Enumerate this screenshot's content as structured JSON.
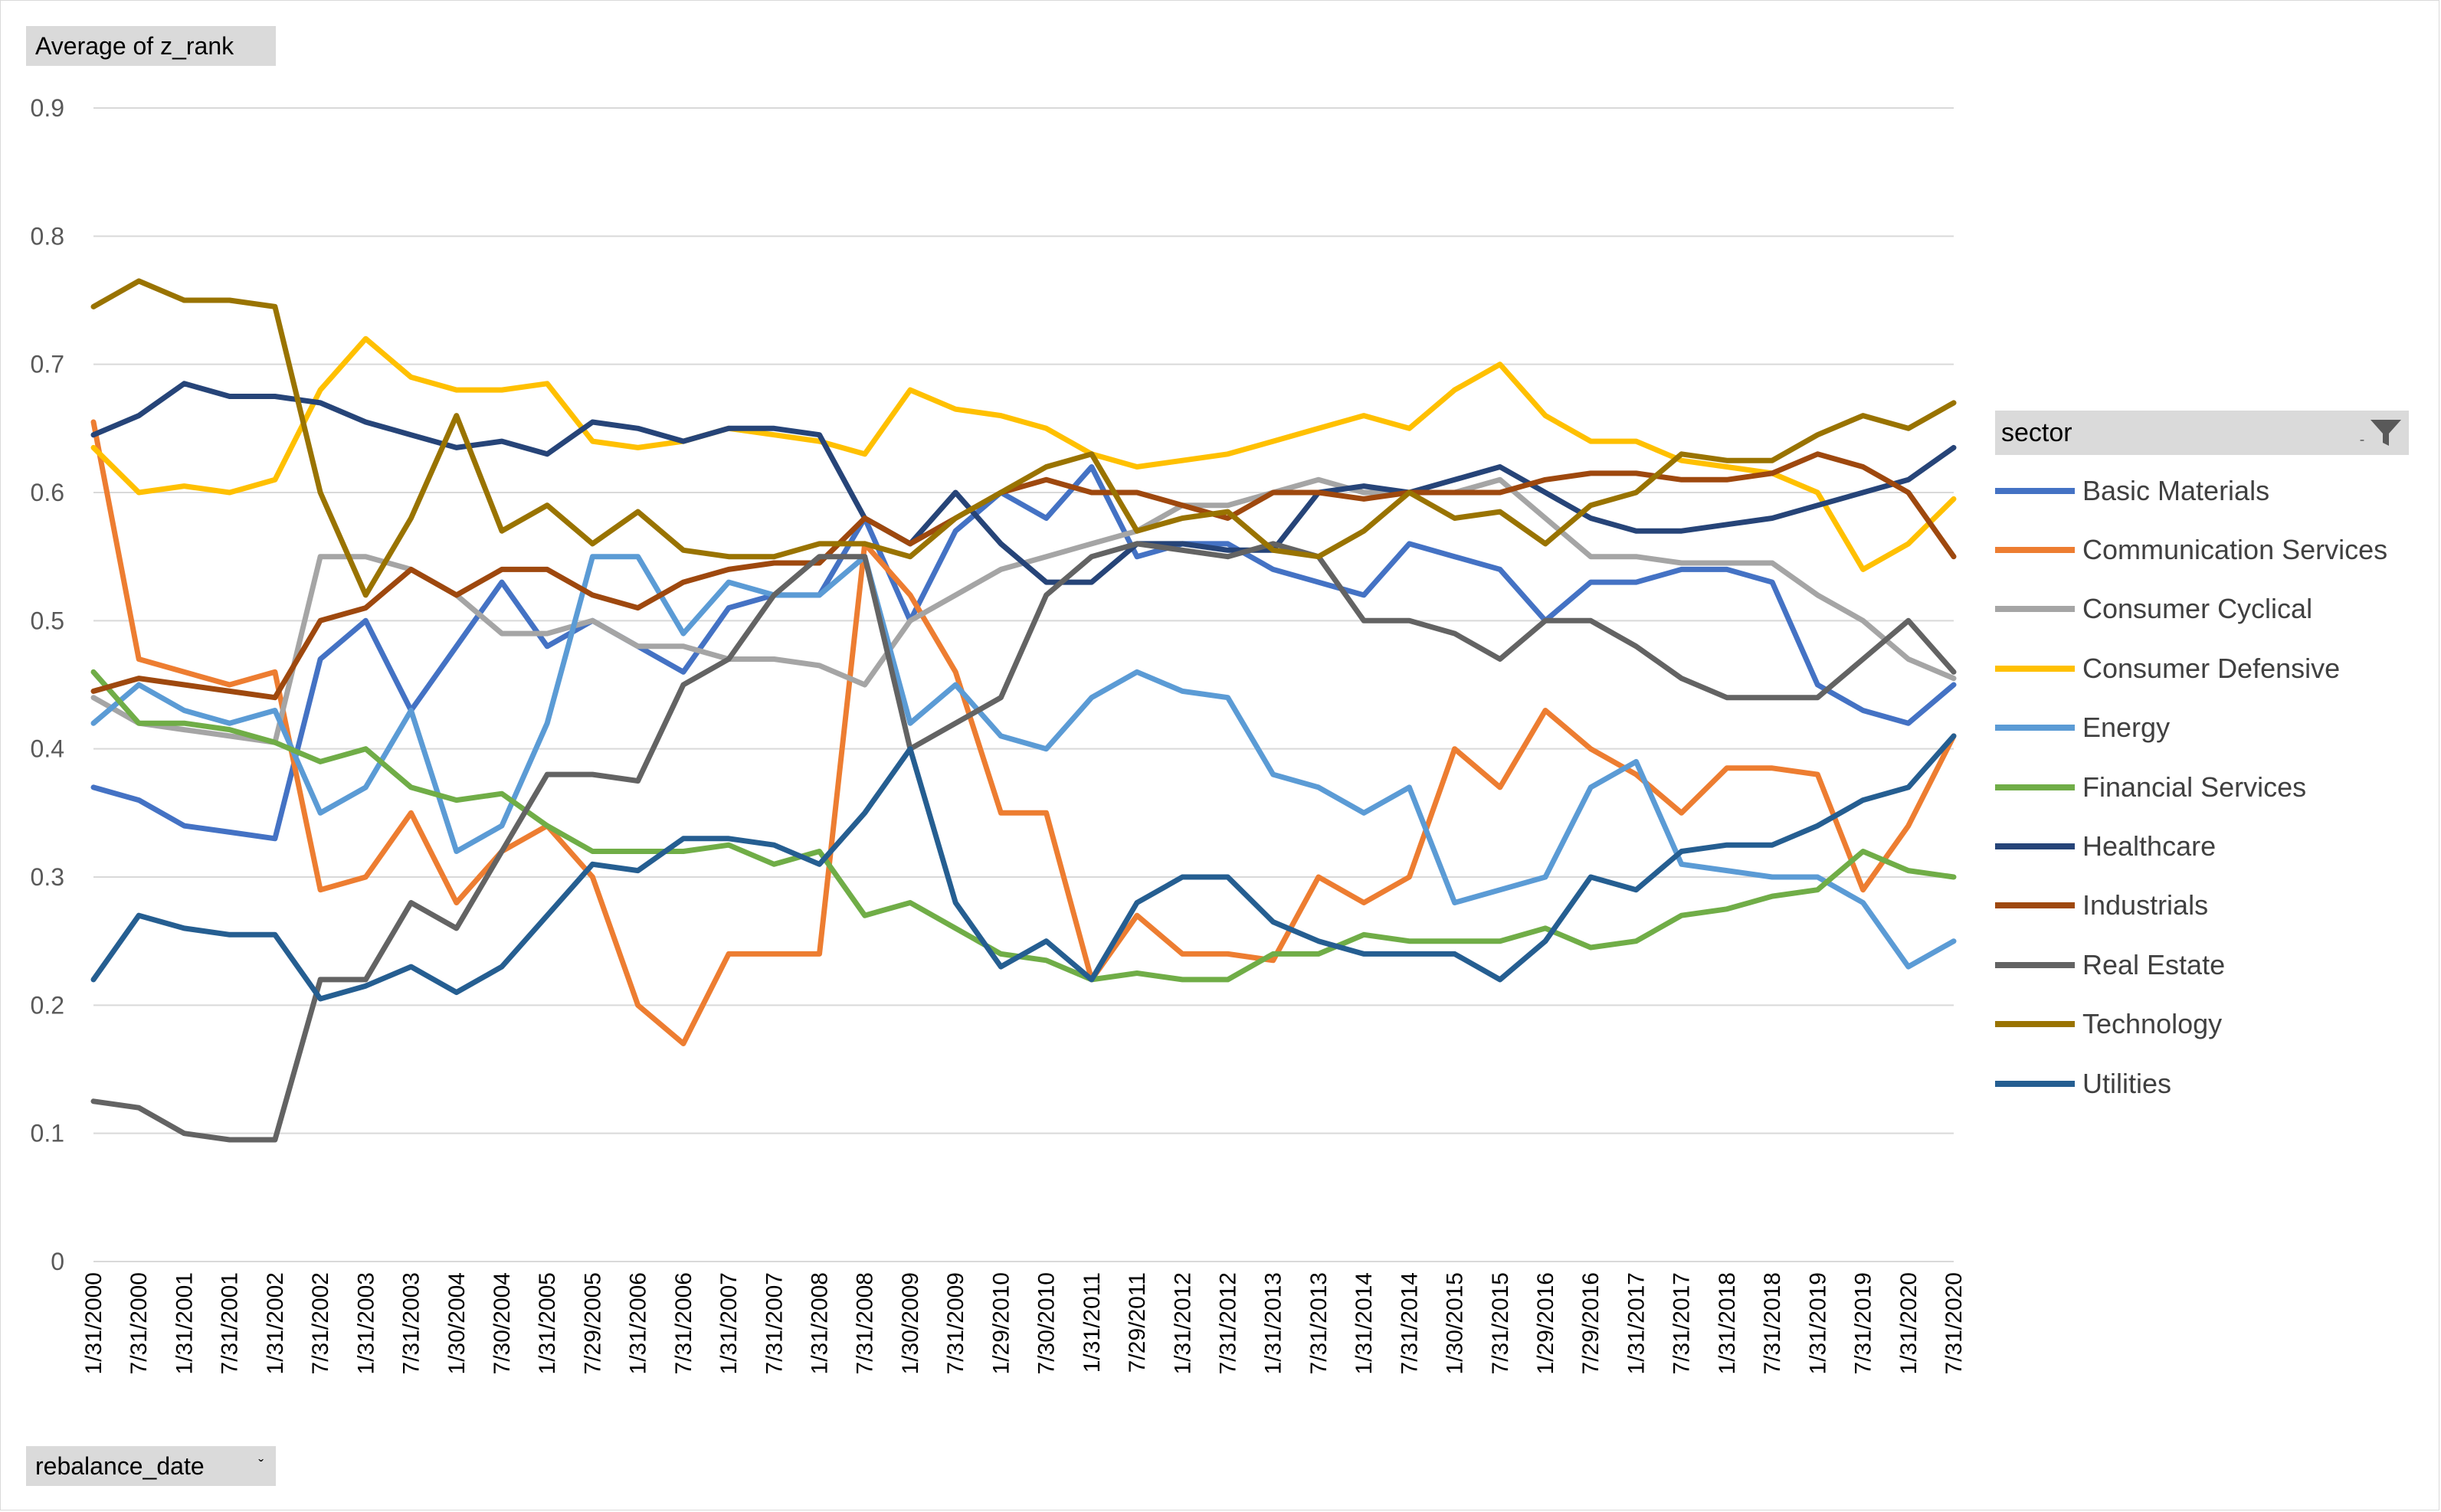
{
  "value_field": {
    "label": "Average  of z_rank"
  },
  "axis_field": {
    "label": "rebalance_date",
    "dropdown_glyph": "ˇ"
  },
  "legend": {
    "title": "sector",
    "dropdown_glyph": "ˍ",
    "filter_icon": "filter-icon"
  },
  "chart_data": {
    "type": "line",
    "title": "",
    "xlabel": "",
    "ylabel": "",
    "ylim": [
      0,
      0.9
    ],
    "y_ticks": [
      "0",
      "0.1",
      "0.2",
      "0.3",
      "0.4",
      "0.5",
      "0.6",
      "0.7",
      "0.8",
      "0.9"
    ],
    "grid": true,
    "legend_position": "right",
    "categories": [
      "1/31/2000",
      "7/31/2000",
      "1/31/2001",
      "7/31/2001",
      "1/31/2002",
      "7/31/2002",
      "1/31/2003",
      "7/31/2003",
      "1/30/2004",
      "7/30/2004",
      "1/31/2005",
      "7/29/2005",
      "1/31/2006",
      "7/31/2006",
      "1/31/2007",
      "7/31/2007",
      "1/31/2008",
      "7/31/2008",
      "1/30/2009",
      "7/31/2009",
      "1/29/2010",
      "7/30/2010",
      "1/31/2011",
      "7/29/2011",
      "1/31/2012",
      "7/31/2012",
      "1/31/2013",
      "7/31/2013",
      "1/31/2014",
      "7/31/2014",
      "1/30/2015",
      "7/31/2015",
      "1/29/2016",
      "7/29/2016",
      "1/31/2017",
      "7/31/2017",
      "1/31/2018",
      "7/31/2018",
      "1/31/2019",
      "7/31/2019",
      "1/31/2020",
      "7/31/2020"
    ],
    "series": [
      {
        "name": "Basic Materials",
        "color": "#4472c4",
        "values": [
          0.37,
          0.36,
          0.34,
          0.335,
          0.33,
          0.47,
          0.5,
          0.43,
          0.48,
          0.53,
          0.48,
          0.5,
          0.48,
          0.46,
          0.51,
          0.52,
          0.52,
          0.58,
          0.5,
          0.57,
          0.6,
          0.58,
          0.62,
          0.55,
          0.56,
          0.56,
          0.54,
          0.53,
          0.52,
          0.56,
          0.55,
          0.54,
          0.5,
          0.53,
          0.53,
          0.54,
          0.54,
          0.53,
          0.45,
          0.43,
          0.42,
          0.45
        ]
      },
      {
        "name": "Communication Services",
        "color": "#ed7d31",
        "values": [
          0.655,
          0.47,
          0.46,
          0.45,
          0.46,
          0.29,
          0.3,
          0.35,
          0.28,
          0.32,
          0.34,
          0.3,
          0.2,
          0.17,
          0.24,
          0.24,
          0.24,
          0.56,
          0.52,
          0.46,
          0.35,
          0.35,
          0.22,
          0.27,
          0.24,
          0.24,
          0.235,
          0.3,
          0.28,
          0.3,
          0.4,
          0.37,
          0.43,
          0.4,
          0.38,
          0.35,
          0.385,
          0.385,
          0.38,
          0.29,
          0.34,
          0.41
        ]
      },
      {
        "name": "Consumer Cyclical",
        "color": "#a5a5a5",
        "values": [
          0.44,
          0.42,
          0.415,
          0.41,
          0.405,
          0.55,
          0.55,
          0.54,
          0.52,
          0.49,
          0.49,
          0.5,
          0.48,
          0.48,
          0.47,
          0.47,
          0.465,
          0.45,
          0.5,
          0.52,
          0.54,
          0.55,
          0.56,
          0.57,
          0.59,
          0.59,
          0.6,
          0.61,
          0.6,
          0.6,
          0.6,
          0.61,
          0.58,
          0.55,
          0.55,
          0.545,
          0.545,
          0.545,
          0.52,
          0.5,
          0.47,
          0.455
        ]
      },
      {
        "name": "Consumer Defensive",
        "color": "#ffc000",
        "values": [
          0.635,
          0.6,
          0.605,
          0.6,
          0.61,
          0.68,
          0.72,
          0.69,
          0.68,
          0.68,
          0.685,
          0.64,
          0.635,
          0.64,
          0.65,
          0.645,
          0.64,
          0.63,
          0.68,
          0.665,
          0.66,
          0.65,
          0.63,
          0.62,
          0.625,
          0.63,
          0.64,
          0.65,
          0.66,
          0.65,
          0.68,
          0.7,
          0.66,
          0.64,
          0.64,
          0.625,
          0.62,
          0.615,
          0.6,
          0.54,
          0.56,
          0.595
        ]
      },
      {
        "name": "Energy",
        "color": "#5b9bd5",
        "values": [
          0.42,
          0.45,
          0.43,
          0.42,
          0.43,
          0.35,
          0.37,
          0.43,
          0.32,
          0.34,
          0.42,
          0.55,
          0.55,
          0.49,
          0.53,
          0.52,
          0.52,
          0.55,
          0.42,
          0.45,
          0.41,
          0.4,
          0.44,
          0.46,
          0.445,
          0.44,
          0.38,
          0.37,
          0.35,
          0.37,
          0.28,
          0.29,
          0.3,
          0.37,
          0.39,
          0.31,
          0.305,
          0.3,
          0.3,
          0.28,
          0.23,
          0.25
        ]
      },
      {
        "name": "Financial Services",
        "color": "#70ad47",
        "values": [
          0.46,
          0.42,
          0.42,
          0.415,
          0.405,
          0.39,
          0.4,
          0.37,
          0.36,
          0.365,
          0.34,
          0.32,
          0.32,
          0.32,
          0.325,
          0.31,
          0.32,
          0.27,
          0.28,
          0.26,
          0.24,
          0.235,
          0.22,
          0.225,
          0.22,
          0.22,
          0.24,
          0.24,
          0.255,
          0.25,
          0.25,
          0.25,
          0.26,
          0.245,
          0.25,
          0.27,
          0.275,
          0.285,
          0.29,
          0.32,
          0.305,
          0.3
        ]
      },
      {
        "name": "Healthcare",
        "color": "#264478",
        "values": [
          0.645,
          0.66,
          0.685,
          0.675,
          0.675,
          0.67,
          0.655,
          0.645,
          0.635,
          0.64,
          0.63,
          0.655,
          0.65,
          0.64,
          0.65,
          0.65,
          0.645,
          0.58,
          0.56,
          0.6,
          0.56,
          0.53,
          0.53,
          0.56,
          0.56,
          0.555,
          0.555,
          0.6,
          0.605,
          0.6,
          0.61,
          0.62,
          0.6,
          0.58,
          0.57,
          0.57,
          0.575,
          0.58,
          0.59,
          0.6,
          0.61,
          0.635
        ]
      },
      {
        "name": "Industrials",
        "color": "#9e480e",
        "values": [
          0.445,
          0.455,
          0.45,
          0.445,
          0.44,
          0.5,
          0.51,
          0.54,
          0.52,
          0.54,
          0.54,
          0.52,
          0.51,
          0.53,
          0.54,
          0.545,
          0.545,
          0.58,
          0.56,
          0.58,
          0.6,
          0.61,
          0.6,
          0.6,
          0.59,
          0.58,
          0.6,
          0.6,
          0.595,
          0.6,
          0.6,
          0.6,
          0.61,
          0.615,
          0.615,
          0.61,
          0.61,
          0.615,
          0.63,
          0.62,
          0.6,
          0.55
        ]
      },
      {
        "name": "Real Estate",
        "color": "#636363",
        "values": [
          0.125,
          0.12,
          0.1,
          0.095,
          0.095,
          0.22,
          0.22,
          0.28,
          0.26,
          0.32,
          0.38,
          0.38,
          0.375,
          0.45,
          0.47,
          0.52,
          0.55,
          0.55,
          0.4,
          0.42,
          0.44,
          0.52,
          0.55,
          0.56,
          0.555,
          0.55,
          0.56,
          0.55,
          0.5,
          0.5,
          0.49,
          0.47,
          0.5,
          0.5,
          0.48,
          0.455,
          0.44,
          0.44,
          0.44,
          0.47,
          0.5,
          0.46
        ]
      },
      {
        "name": "Technology",
        "color": "#997300",
        "values": [
          0.745,
          0.765,
          0.75,
          0.75,
          0.745,
          0.6,
          0.52,
          0.58,
          0.66,
          0.57,
          0.59,
          0.56,
          0.585,
          0.555,
          0.55,
          0.55,
          0.56,
          0.56,
          0.55,
          0.58,
          0.6,
          0.62,
          0.63,
          0.57,
          0.58,
          0.585,
          0.555,
          0.55,
          0.57,
          0.6,
          0.58,
          0.585,
          0.56,
          0.59,
          0.6,
          0.63,
          0.625,
          0.625,
          0.645,
          0.66,
          0.65,
          0.67
        ]
      },
      {
        "name": "Utilities",
        "color": "#255e91",
        "values": [
          0.22,
          0.27,
          0.26,
          0.255,
          0.255,
          0.205,
          0.215,
          0.23,
          0.21,
          0.23,
          0.27,
          0.31,
          0.305,
          0.33,
          0.33,
          0.325,
          0.31,
          0.35,
          0.4,
          0.28,
          0.23,
          0.25,
          0.22,
          0.28,
          0.3,
          0.3,
          0.265,
          0.25,
          0.24,
          0.24,
          0.24,
          0.22,
          0.25,
          0.3,
          0.29,
          0.32,
          0.325,
          0.325,
          0.34,
          0.36,
          0.37,
          0.41
        ]
      }
    ]
  }
}
